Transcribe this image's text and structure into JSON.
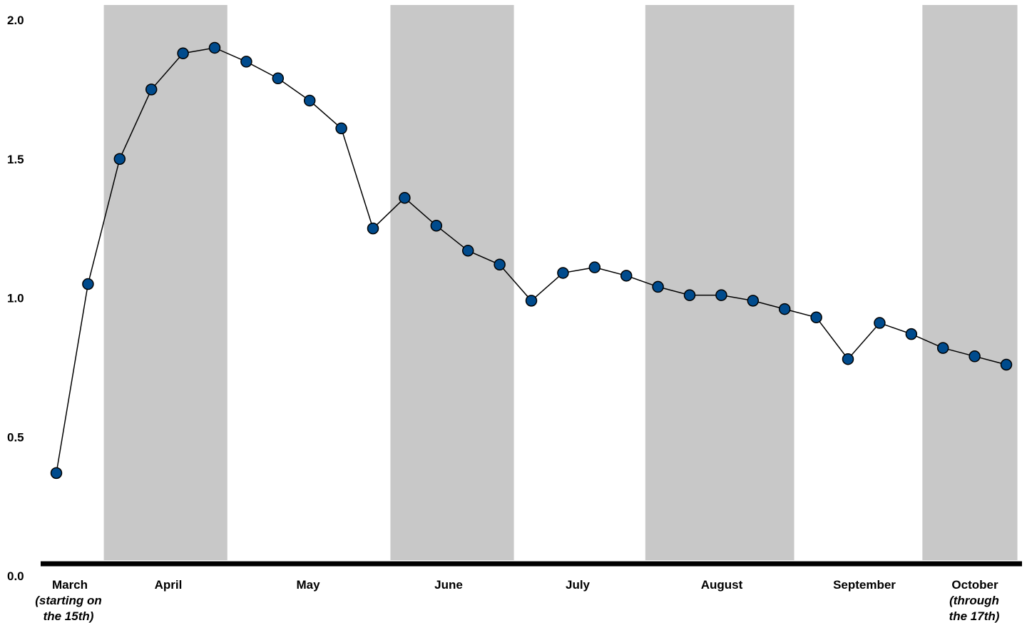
{
  "chart_data": {
    "type": "line",
    "title": "",
    "xlabel": "",
    "ylabel": "",
    "ylim": [
      0,
      2.0
    ],
    "yticks": [
      "0.0",
      "0.5",
      "1.0",
      "1.5",
      "2.0"
    ],
    "grid": false,
    "legend": "none",
    "colors": {
      "marker_fill": "#004b8d",
      "marker_stroke": "#000000",
      "line": "#000000",
      "band": "#c8c8c8"
    },
    "months": [
      {
        "label": "March",
        "note_lines": [
          "(starting on",
          "the 15th)"
        ],
        "shaded": false,
        "start_index": 0,
        "end_index": 1.5
      },
      {
        "label": "April",
        "note_lines": [],
        "shaded": true,
        "start_index": 1.5,
        "end_index": 5.4
      },
      {
        "label": "May",
        "note_lines": [],
        "shaded": false,
        "start_index": 5.4,
        "end_index": 10.55
      },
      {
        "label": "June",
        "note_lines": [],
        "shaded": true,
        "start_index": 10.55,
        "end_index": 14.45
      },
      {
        "label": "July",
        "note_lines": [],
        "shaded": false,
        "start_index": 14.45,
        "end_index": 18.6
      },
      {
        "label": "August",
        "note_lines": [],
        "shaded": true,
        "start_index": 18.6,
        "end_index": 23.3
      },
      {
        "label": "September",
        "note_lines": [],
        "shaded": false,
        "start_index": 23.3,
        "end_index": 27.35
      },
      {
        "label": "October",
        "note_lines": [
          "(through",
          "the 17th)"
        ],
        "shaded": true,
        "start_index": 27.35,
        "end_index": 30.35
      }
    ],
    "series": [
      {
        "values": [
          0.37,
          1.05,
          1.5,
          1.75,
          1.88,
          1.9,
          1.85,
          1.79,
          1.71,
          1.61,
          1.25,
          1.36,
          1.26,
          1.17,
          1.12,
          0.99,
          1.09,
          1.11,
          1.08,
          1.04,
          1.01,
          1.01,
          0.99,
          0.96,
          0.93,
          0.78,
          0.91,
          0.87,
          0.82,
          0.79,
          0.76
        ]
      }
    ]
  }
}
